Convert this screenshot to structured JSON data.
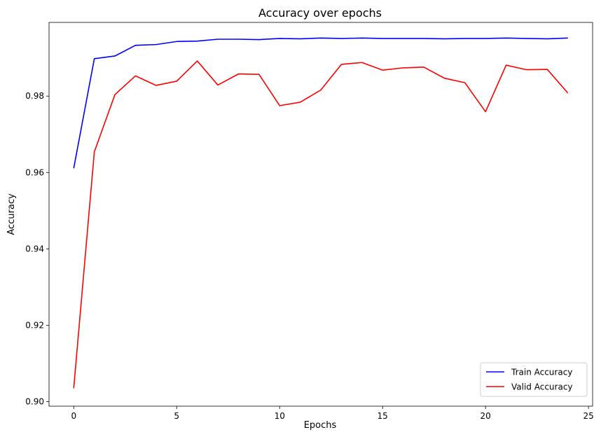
{
  "chart_data": {
    "type": "line",
    "title": "Accuracy over epochs",
    "xlabel": "Epochs",
    "ylabel": "Accuracy",
    "xlim": [
      -1.2,
      25.2
    ],
    "ylim": [
      0.8988,
      0.9993
    ],
    "xticks": [
      0,
      5,
      10,
      15,
      20,
      25
    ],
    "xtick_labels": [
      "0",
      "5",
      "10",
      "15",
      "20",
      "25"
    ],
    "yticks": [
      0.9,
      0.92,
      0.94,
      0.96,
      0.98
    ],
    "ytick_labels": [
      "0.90",
      "0.92",
      "0.94",
      "0.96",
      "0.98"
    ],
    "grid": false,
    "legend_position": "lower-right",
    "x": [
      0,
      1,
      2,
      3,
      4,
      5,
      6,
      7,
      8,
      9,
      10,
      11,
      12,
      13,
      14,
      15,
      16,
      17,
      18,
      19,
      20,
      21,
      22,
      23,
      24
    ],
    "series": [
      {
        "name": "Train Accuracy",
        "color": "#0000ff",
        "values": [
          0.9611,
          0.9898,
          0.9905,
          0.9933,
          0.9935,
          0.9943,
          0.9944,
          0.9949,
          0.9949,
          0.9948,
          0.9951,
          0.995,
          0.9952,
          0.9951,
          0.9952,
          0.9951,
          0.9951,
          0.9951,
          0.995,
          0.9951,
          0.9951,
          0.9952,
          0.9951,
          0.995,
          0.9952
        ]
      },
      {
        "name": "Valid Accuracy",
        "color": "#ff0000",
        "values": [
          0.9035,
          0.9654,
          0.9804,
          0.9853,
          0.9828,
          0.9839,
          0.9892,
          0.9829,
          0.9858,
          0.9857,
          0.9775,
          0.9784,
          0.9816,
          0.9883,
          0.9888,
          0.9868,
          0.9874,
          0.9876,
          0.9847,
          0.9835,
          0.9759,
          0.9881,
          0.9869,
          0.987,
          0.9808
        ]
      }
    ]
  }
}
